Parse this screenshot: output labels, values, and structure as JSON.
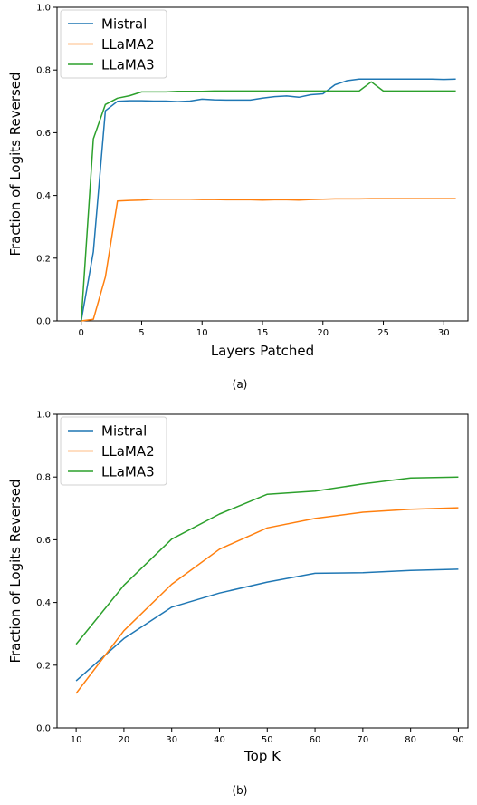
{
  "colors": {
    "Mistral": "#1f77b4",
    "LLaMA2": "#ff7f0e",
    "LLaMA3": "#2ca02c"
  },
  "chart_data": [
    {
      "type": "line",
      "caption": "(a)",
      "xlabel": "Layers Patched",
      "ylabel": "Fraction of Logits Reversed",
      "xlim": [
        -2,
        32
      ],
      "ylim": [
        0,
        1.0
      ],
      "xticks": [
        0,
        5,
        10,
        15,
        20,
        25,
        30
      ],
      "yticks": [
        0.0,
        0.2,
        0.4,
        0.6,
        0.8,
        1.0
      ],
      "legend": "top-left",
      "grid": false,
      "x": [
        0,
        1,
        2,
        3,
        4,
        5,
        6,
        7,
        8,
        9,
        10,
        11,
        12,
        13,
        14,
        15,
        16,
        17,
        18,
        19,
        20,
        21,
        22,
        23,
        24,
        25,
        26,
        27,
        28,
        29,
        30,
        31
      ],
      "series": [
        {
          "name": "Mistral",
          "values": [
            0.0,
            0.22,
            0.67,
            0.7,
            0.702,
            0.702,
            0.701,
            0.701,
            0.699,
            0.701,
            0.707,
            0.705,
            0.704,
            0.704,
            0.704,
            0.71,
            0.715,
            0.717,
            0.713,
            0.721,
            0.724,
            0.753,
            0.766,
            0.771,
            0.771,
            0.771,
            0.771,
            0.771,
            0.771,
            0.771,
            0.77,
            0.771
          ]
        },
        {
          "name": "LLaMA2",
          "values": [
            0.0,
            0.005,
            0.14,
            0.382,
            0.384,
            0.385,
            0.388,
            0.388,
            0.388,
            0.388,
            0.387,
            0.387,
            0.386,
            0.386,
            0.386,
            0.385,
            0.386,
            0.386,
            0.385,
            0.387,
            0.388,
            0.389,
            0.389,
            0.389,
            0.39,
            0.39,
            0.39,
            0.39,
            0.39,
            0.39,
            0.39,
            0.39
          ]
        },
        {
          "name": "LLaMA3",
          "values": [
            0.0,
            0.58,
            0.69,
            0.71,
            0.718,
            0.73,
            0.73,
            0.73,
            0.732,
            0.732,
            0.732,
            0.733,
            0.733,
            0.733,
            0.733,
            0.733,
            0.733,
            0.733,
            0.733,
            0.733,
            0.733,
            0.733,
            0.733,
            0.733,
            0.762,
            0.733,
            0.733,
            0.733,
            0.733,
            0.733,
            0.733,
            0.733
          ]
        }
      ]
    },
    {
      "type": "line",
      "caption": "(b)",
      "xlabel": "Top K",
      "ylabel": "Fraction of Logits Reversed",
      "xlim": [
        6,
        92
      ],
      "ylim": [
        0,
        1.0
      ],
      "xticks": [
        10,
        20,
        30,
        40,
        50,
        60,
        70,
        80,
        90
      ],
      "yticks": [
        0.0,
        0.2,
        0.4,
        0.6,
        0.8,
        1.0
      ],
      "legend": "top-left",
      "grid": false,
      "x": [
        10,
        20,
        30,
        40,
        50,
        60,
        70,
        80,
        90
      ],
      "series": [
        {
          "name": "Mistral",
          "values": [
            0.15,
            0.285,
            0.385,
            0.43,
            0.465,
            0.493,
            0.495,
            0.502,
            0.506
          ]
        },
        {
          "name": "LLaMA2",
          "values": [
            0.11,
            0.31,
            0.458,
            0.57,
            0.638,
            0.668,
            0.688,
            0.697,
            0.702
          ]
        },
        {
          "name": "LLaMA3",
          "values": [
            0.267,
            0.455,
            0.602,
            0.682,
            0.745,
            0.755,
            0.778,
            0.797,
            0.8
          ]
        }
      ]
    }
  ]
}
